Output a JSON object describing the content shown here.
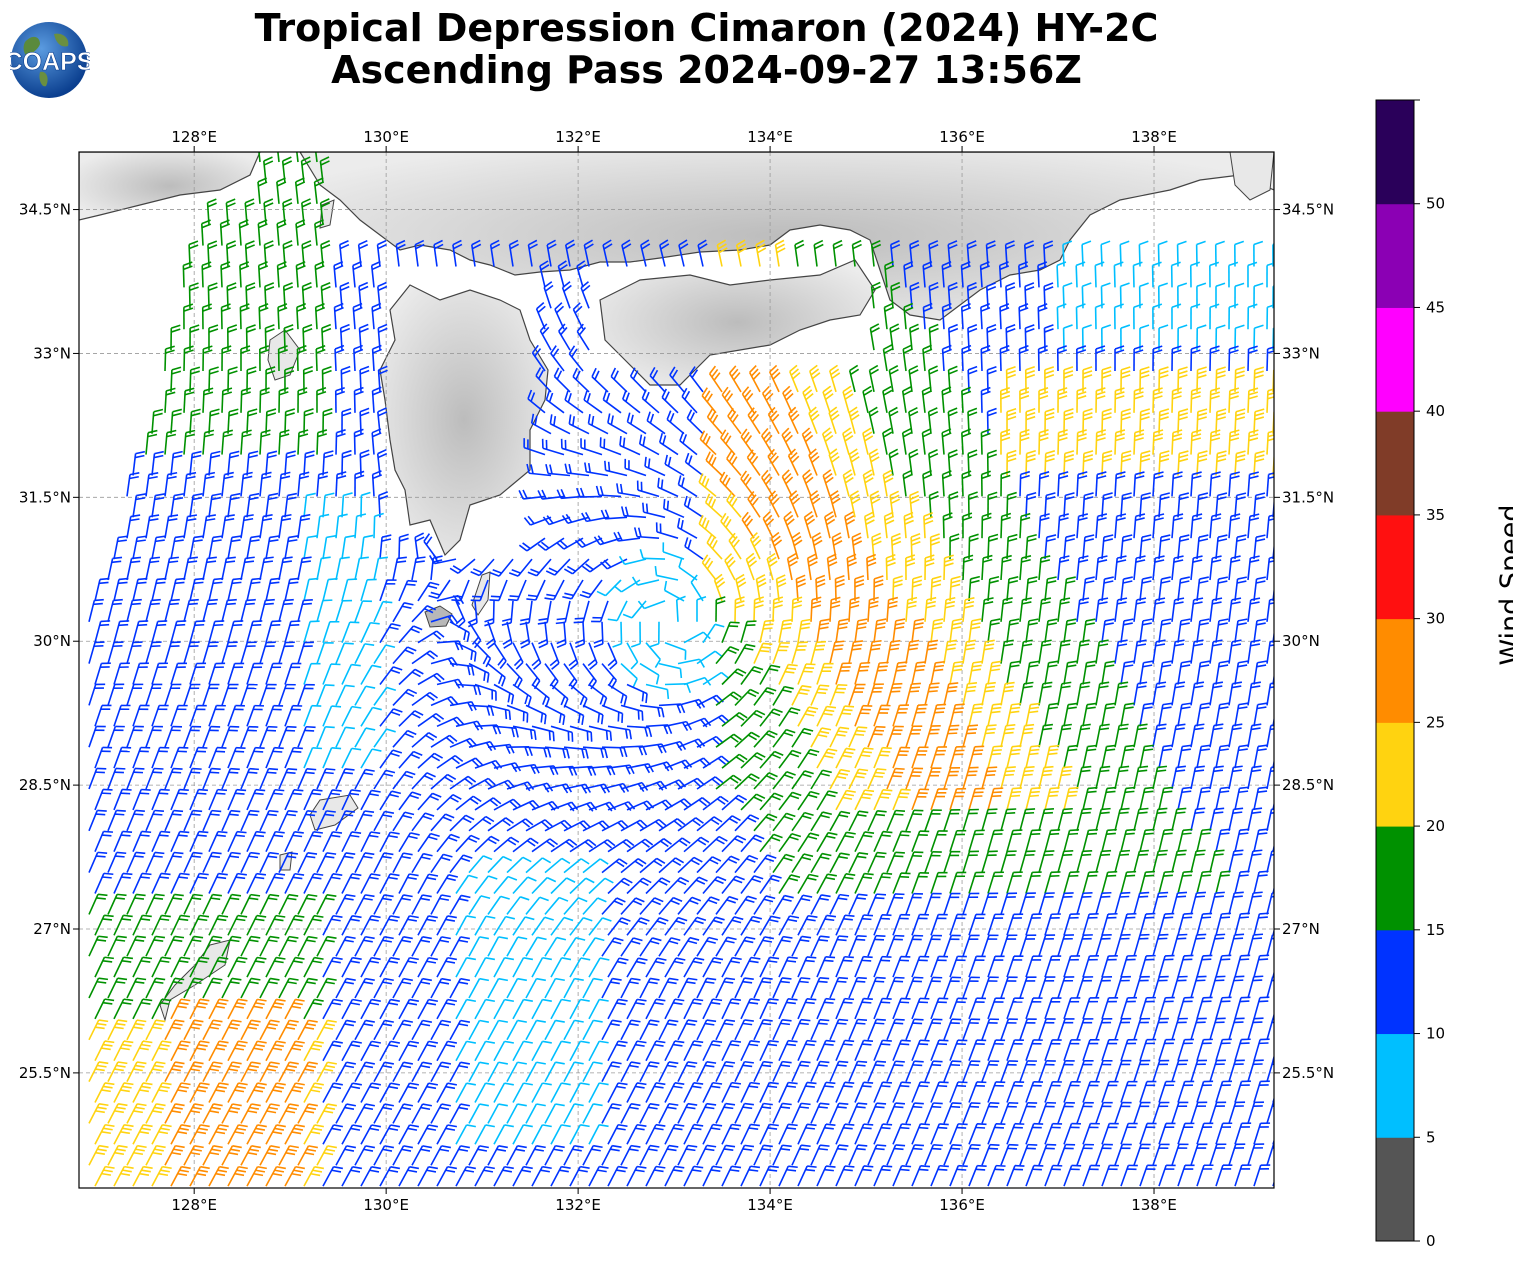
{
  "title_line1": "Tropical Depression Cimaron (2024) HY-2C",
  "title_line2": "Ascending Pass 2024-09-27 13:56Z",
  "logo_text": "COAPS",
  "lon_labels": [
    "128°E",
    "130°E",
    "132°E",
    "134°E",
    "136°E",
    "138°E"
  ],
  "lat_labels": [
    "34.5°N",
    "33°N",
    "31.5°N",
    "30°N",
    "28.5°N",
    "27°N",
    "25.5°N"
  ],
  "colorbar": {
    "label": "Wind Speed (knots)",
    "ticks": [
      "0",
      "5",
      "10",
      "15",
      "20",
      "25",
      "30",
      "35",
      "40",
      "45",
      "50"
    ],
    "bins": [
      {
        "min": 0,
        "max": 5,
        "color": "#555555"
      },
      {
        "min": 5,
        "max": 10,
        "color": "#00bfff"
      },
      {
        "min": 10,
        "max": 15,
        "color": "#0033ff"
      },
      {
        "min": 15,
        "max": 20,
        "color": "#009100"
      },
      {
        "min": 20,
        "max": 25,
        "color": "#ffd310"
      },
      {
        "min": 25,
        "max": 30,
        "color": "#ff8c00"
      },
      {
        "min": 30,
        "max": 35,
        "color": "#ff1010"
      },
      {
        "min": 35,
        "max": 40,
        "color": "#803c28"
      },
      {
        "min": 40,
        "max": 45,
        "color": "#ff00ff"
      },
      {
        "min": 45,
        "max": 50,
        "color": "#8b00b4"
      },
      {
        "min": 50,
        "max": 55,
        "color": "#2a005a"
      }
    ]
  },
  "storm_center": {
    "lon": 133.0,
    "lat": 30.2
  }
}
